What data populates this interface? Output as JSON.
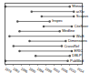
{
  "chart_data": {
    "type": "timeline",
    "rows": [
      {
        "label": "Mosaic",
        "start": 1978,
        "end": 2010
      },
      {
        "label": "arXiv",
        "start": 1991,
        "end": 2012
      },
      {
        "label": "Scopus",
        "start": 1996,
        "end": 2012
      },
      {
        "label": "Inspec",
        "start": 1984,
        "end": 2000
      },
      {
        "label": "CiteSeer",
        "start": 1997,
        "end": 2011
      },
      {
        "label": "Medline",
        "start": 1985,
        "end": 2005
      },
      {
        "label": "WoS",
        "start": 1980,
        "end": 2012
      },
      {
        "label": "Dimensions",
        "start": 1990,
        "end": 2008
      },
      {
        "label": "CrossRef",
        "start": 1982,
        "end": 2006
      },
      {
        "label": "ERIC",
        "start": 1985,
        "end": 2011
      },
      {
        "label": "DBLP",
        "start": 1993,
        "end": 2010
      },
      {
        "label": "PubMed",
        "start": 1978,
        "end": 2009
      }
    ],
    "xlim": [
      1978,
      2016
    ],
    "xticks": [
      1978,
      1982,
      1986,
      1990,
      1994,
      1998,
      2002,
      2006,
      2010,
      2014
    ],
    "color": "#555555",
    "tick_labels": "x",
    "grid": false
  }
}
